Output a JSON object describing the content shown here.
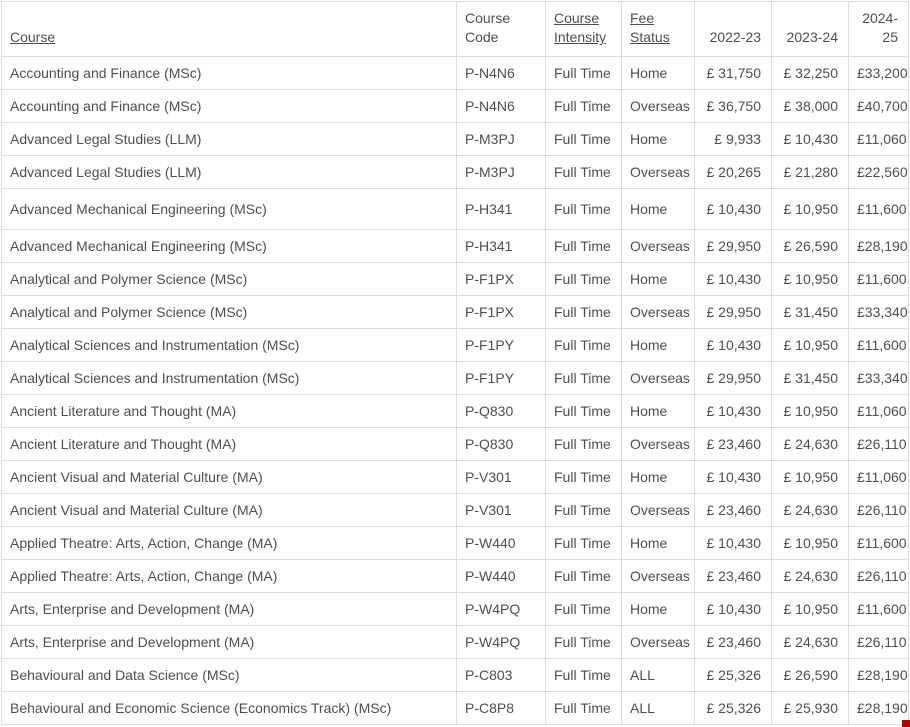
{
  "colors": {
    "text": "#4e4e4e",
    "border": "#dcdcdc",
    "background": "#ffffff",
    "corner_mark": "#b30000"
  },
  "header": {
    "columns": [
      {
        "label": "Course",
        "underlined": true,
        "align": "left"
      },
      {
        "label": "Course Code",
        "underlined": false,
        "align": "left"
      },
      {
        "label": "Course Intensity",
        "underlined": true,
        "align": "left"
      },
      {
        "label": "Fee Status",
        "underlined": true,
        "align": "left"
      },
      {
        "label": "2022-23",
        "underlined": false,
        "align": "right"
      },
      {
        "label": "2023-24",
        "underlined": false,
        "align": "right"
      },
      {
        "label": "2024-25",
        "underlined": false,
        "align": "right"
      }
    ]
  },
  "rows": [
    {
      "course": "Accounting and Finance (MSc)",
      "code": "P-N4N6",
      "intensity": "Full Time",
      "fee_status": "Home",
      "fees": [
        "£ 31,750",
        "£ 32,250",
        "£33,200"
      ],
      "tall": false
    },
    {
      "course": "Accounting and Finance (MSc)",
      "code": "P-N4N6",
      "intensity": "Full Time",
      "fee_status": "Overseas",
      "fees": [
        "£ 36,750",
        "£ 38,000",
        "£40,700"
      ],
      "tall": false
    },
    {
      "course": "Advanced Legal Studies (LLM)",
      "code": "P-M3PJ",
      "intensity": "Full Time",
      "fee_status": "Home",
      "fees": [
        "£ 9,933",
        "£ 10,430",
        "£11,060"
      ],
      "tall": false
    },
    {
      "course": "Advanced Legal Studies (LLM)",
      "code": "P-M3PJ",
      "intensity": "Full Time",
      "fee_status": "Overseas",
      "fees": [
        "£ 20,265",
        "£ 21,280",
        "£22,560"
      ],
      "tall": false
    },
    {
      "course": "Advanced Mechanical Engineering (MSc)",
      "code": "P-H341",
      "intensity": "Full Time",
      "fee_status": "Home",
      "fees": [
        "£ 10,430",
        "£ 10,950",
        "£11,600"
      ],
      "tall": true
    },
    {
      "course": "Advanced Mechanical Engineering (MSc)",
      "code": "P-H341",
      "intensity": "Full Time",
      "fee_status": "Overseas",
      "fees": [
        "£ 29,950",
        "£ 26,590",
        "£28,190"
      ],
      "tall": false
    },
    {
      "course": "Analytical and Polymer Science (MSc)",
      "code": "P-F1PX",
      "intensity": "Full Time",
      "fee_status": "Home",
      "fees": [
        "£ 10,430",
        "£ 10,950",
        "£11,600"
      ],
      "tall": false
    },
    {
      "course": "Analytical and Polymer Science (MSc)",
      "code": "P-F1PX",
      "intensity": "Full Time",
      "fee_status": "Overseas",
      "fees": [
        "£ 29,950",
        "£ 31,450",
        "£33,340"
      ],
      "tall": false
    },
    {
      "course": "Analytical Sciences and Instrumentation (MSc)",
      "code": "P-F1PY",
      "intensity": "Full Time",
      "fee_status": "Home",
      "fees": [
        "£ 10,430",
        "£ 10,950",
        "£11,600"
      ],
      "tall": false
    },
    {
      "course": "Analytical Sciences and Instrumentation (MSc)",
      "code": "P-F1PY",
      "intensity": "Full Time",
      "fee_status": "Overseas",
      "fees": [
        "£ 29,950",
        "£ 31,450",
        "£33,340"
      ],
      "tall": false
    },
    {
      "course": "Ancient Literature and Thought (MA)",
      "code": "P-Q830",
      "intensity": "Full Time",
      "fee_status": "Home",
      "fees": [
        "£ 10,430",
        "£ 10,950",
        "£11,060"
      ],
      "tall": false
    },
    {
      "course": "Ancient Literature and Thought (MA)",
      "code": "P-Q830",
      "intensity": "Full Time",
      "fee_status": "Overseas",
      "fees": [
        "£ 23,460",
        "£ 24,630",
        "£26,110"
      ],
      "tall": false
    },
    {
      "course": "Ancient Visual and Material Culture (MA)",
      "code": "P-V301",
      "intensity": "Full Time",
      "fee_status": "Home",
      "fees": [
        "£ 10,430",
        "£ 10,950",
        "£11,060"
      ],
      "tall": false
    },
    {
      "course": "Ancient Visual and Material Culture (MA)",
      "code": "P-V301",
      "intensity": "Full Time",
      "fee_status": "Overseas",
      "fees": [
        "£ 23,460",
        "£ 24,630",
        "£26,110"
      ],
      "tall": false
    },
    {
      "course": "Applied Theatre: Arts, Action, Change (MA)",
      "code": "P-W440",
      "intensity": "Full Time",
      "fee_status": "Home",
      "fees": [
        "£ 10,430",
        "£ 10,950",
        "£11,600"
      ],
      "tall": false
    },
    {
      "course": "Applied Theatre: Arts, Action, Change (MA)",
      "code": "P-W440",
      "intensity": "Full Time",
      "fee_status": "Overseas",
      "fees": [
        "£ 23,460",
        "£ 24,630",
        "£26,110"
      ],
      "tall": false
    },
    {
      "course": "Arts, Enterprise and Development (MA)",
      "code": "P-W4PQ",
      "intensity": "Full Time",
      "fee_status": "Home",
      "fees": [
        "£ 10,430",
        "£ 10,950",
        "£11,600"
      ],
      "tall": false
    },
    {
      "course": "Arts, Enterprise and Development (MA)",
      "code": "P-W4PQ",
      "intensity": "Full Time",
      "fee_status": "Overseas",
      "fees": [
        "£ 23,460",
        "£ 24,630",
        "£26,110"
      ],
      "tall": false
    },
    {
      "course": "Behavioural and Data Science (MSc)",
      "code": "P-C803",
      "intensity": "Full Time",
      "fee_status": "ALL",
      "fees": [
        "£ 25,326",
        "£ 26,590",
        "£28,190"
      ],
      "tall": false
    },
    {
      "course": "Behavioural and Economic Science (Economics Track) (MSc)",
      "code": "P-C8P8",
      "intensity": "Full Time",
      "fee_status": "ALL",
      "fees": [
        "£ 25,326",
        "£ 25,930",
        "£28,190"
      ],
      "tall": false
    }
  ]
}
